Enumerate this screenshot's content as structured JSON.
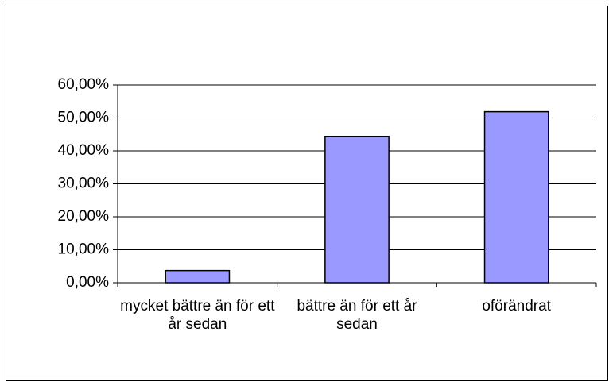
{
  "chart_data": {
    "type": "bar",
    "categories": [
      "mycket bättre än för ett år sedan",
      "bättre än för ett år sedan",
      "oförändrat"
    ],
    "values": [
      3.7,
      44.4,
      51.9
    ],
    "color": "#9999ff",
    "ylim": [
      0,
      60
    ],
    "yticks": [
      {
        "value": 0,
        "label": "0,00%"
      },
      {
        "value": 10,
        "label": "10,00%"
      },
      {
        "value": 20,
        "label": "20,00%"
      },
      {
        "value": 30,
        "label": "30,00%"
      },
      {
        "value": 40,
        "label": "40,00%"
      },
      {
        "value": 50,
        "label": "50,00%"
      },
      {
        "value": 60,
        "label": "60,00%"
      }
    ],
    "grid": true
  }
}
